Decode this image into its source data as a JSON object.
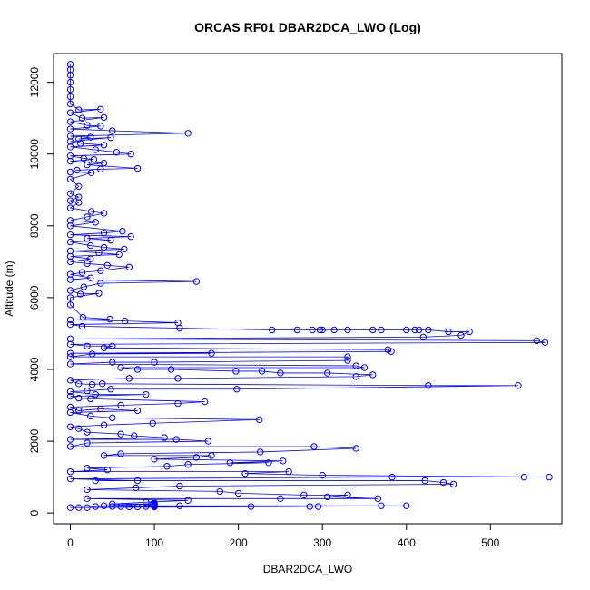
{
  "chart_data": {
    "type": "scatter",
    "title": "ORCAS RF01 DBAR2DCA_LWO (Log)",
    "xlabel": "DBAR2DCA_LWO",
    "ylabel": "Altitude (m)",
    "xlim": [
      -20,
      585
    ],
    "ylim": [
      -300,
      12800
    ],
    "xticks": [
      0,
      100,
      200,
      300,
      400,
      500
    ],
    "yticks": [
      0,
      2000,
      4000,
      6000,
      8000,
      10000,
      12000
    ],
    "grid": false,
    "legend": "none",
    "series": [
      {
        "color": "#0000ff",
        "marker": "open-circle",
        "line": true,
        "points": [
          [
            0,
            12500
          ],
          [
            0,
            12350
          ],
          [
            0,
            12200
          ],
          [
            0,
            12000
          ],
          [
            0,
            11800
          ],
          [
            0,
            11600
          ],
          [
            0,
            11400
          ],
          [
            10,
            11230
          ],
          [
            36,
            11250
          ],
          [
            0,
            11150
          ],
          [
            14,
            11000
          ],
          [
            40,
            11020
          ],
          [
            0,
            10900
          ],
          [
            20,
            10800
          ],
          [
            36,
            10780
          ],
          [
            0,
            10700
          ],
          [
            50,
            10650
          ],
          [
            140,
            10580
          ],
          [
            0,
            10500
          ],
          [
            24,
            10470
          ],
          [
            10,
            10420
          ],
          [
            48,
            10460
          ],
          [
            0,
            10350
          ],
          [
            12,
            10300
          ],
          [
            40,
            10250
          ],
          [
            0,
            10200
          ],
          [
            30,
            10120
          ],
          [
            55,
            10050
          ],
          [
            72,
            10000
          ],
          [
            0,
            9950
          ],
          [
            16,
            9880
          ],
          [
            28,
            9850
          ],
          [
            0,
            9800
          ],
          [
            40,
            9750
          ],
          [
            20,
            9700
          ],
          [
            80,
            9600
          ],
          [
            36,
            9580
          ],
          [
            8,
            9550
          ],
          [
            0,
            9500
          ],
          [
            25,
            9480
          ],
          [
            0,
            9300
          ],
          [
            10,
            9100
          ],
          [
            0,
            8900
          ],
          [
            10,
            8800
          ],
          [
            0,
            8700
          ],
          [
            10,
            8650
          ],
          [
            0,
            8500
          ],
          [
            25,
            8400
          ],
          [
            40,
            8350
          ],
          [
            20,
            8250
          ],
          [
            0,
            8150
          ],
          [
            30,
            8100
          ],
          [
            0,
            8000
          ],
          [
            62,
            7850
          ],
          [
            40,
            7800
          ],
          [
            0,
            7750
          ],
          [
            72,
            7700
          ],
          [
            20,
            7650
          ],
          [
            48,
            7600
          ],
          [
            0,
            7550
          ],
          [
            24,
            7450
          ],
          [
            40,
            7400
          ],
          [
            64,
            7350
          ],
          [
            0,
            7300
          ],
          [
            34,
            7250
          ],
          [
            58,
            7200
          ],
          [
            0,
            7150
          ],
          [
            24,
            7080
          ],
          [
            0,
            7000
          ],
          [
            20,
            6950
          ],
          [
            44,
            6900
          ],
          [
            70,
            6850
          ],
          [
            36,
            6750
          ],
          [
            14,
            6700
          ],
          [
            0,
            6650
          ],
          [
            24,
            6550
          ],
          [
            0,
            6500
          ],
          [
            150,
            6450
          ],
          [
            36,
            6400
          ],
          [
            16,
            6300
          ],
          [
            0,
            6200
          ],
          [
            12,
            6100
          ],
          [
            34,
            6120
          ],
          [
            0,
            6000
          ],
          [
            0,
            5800
          ],
          [
            15,
            5450
          ],
          [
            47,
            5400
          ],
          [
            0,
            5380
          ],
          [
            65,
            5350
          ],
          [
            128,
            5300
          ],
          [
            0,
            5250
          ],
          [
            14,
            5200
          ],
          [
            130,
            5150
          ],
          [
            240,
            5100
          ],
          [
            270,
            5100
          ],
          [
            288,
            5100
          ],
          [
            297,
            5100
          ],
          [
            300,
            5100
          ],
          [
            314,
            5100
          ],
          [
            330,
            5100
          ],
          [
            360,
            5100
          ],
          [
            370,
            5100
          ],
          [
            400,
            5100
          ],
          [
            410,
            5100
          ],
          [
            415,
            5100
          ],
          [
            426,
            5100
          ],
          [
            450,
            5050
          ],
          [
            475,
            5050
          ],
          [
            465,
            4950
          ],
          [
            420,
            4900
          ],
          [
            0,
            4850
          ],
          [
            555,
            4800
          ],
          [
            565,
            4750
          ],
          [
            0,
            4700
          ],
          [
            20,
            4650
          ],
          [
            50,
            4650
          ],
          [
            40,
            4600
          ],
          [
            378,
            4550
          ],
          [
            382,
            4500
          ],
          [
            0,
            4450
          ],
          [
            168,
            4450
          ],
          [
            26,
            4430
          ],
          [
            0,
            4350
          ],
          [
            330,
            4350
          ],
          [
            330,
            4250
          ],
          [
            100,
            4200
          ],
          [
            50,
            4200
          ],
          [
            0,
            4150
          ],
          [
            340,
            4100
          ],
          [
            350,
            4050
          ],
          [
            60,
            4050
          ],
          [
            80,
            4000
          ],
          [
            120,
            4000
          ],
          [
            197,
            3950
          ],
          [
            228,
            3950
          ],
          [
            250,
            3900
          ],
          [
            306,
            3900
          ],
          [
            360,
            3850
          ],
          [
            340,
            3800
          ],
          [
            128,
            3750
          ],
          [
            70,
            3750
          ],
          [
            0,
            3700
          ],
          [
            10,
            3600
          ],
          [
            26,
            3580
          ],
          [
            38,
            3600
          ],
          [
            426,
            3550
          ],
          [
            533,
            3550
          ],
          [
            198,
            3450
          ],
          [
            48,
            3450
          ],
          [
            20,
            3400
          ],
          [
            0,
            3380
          ],
          [
            30,
            3300
          ],
          [
            90,
            3300
          ],
          [
            0,
            3250
          ],
          [
            10,
            3200
          ],
          [
            24,
            3180
          ],
          [
            160,
            3100
          ],
          [
            128,
            3050
          ],
          [
            60,
            3000
          ],
          [
            0,
            2950
          ],
          [
            10,
            2850
          ],
          [
            36,
            2900
          ],
          [
            80,
            2850
          ],
          [
            0,
            2800
          ],
          [
            24,
            2700
          ],
          [
            50,
            2650
          ],
          [
            225,
            2600
          ],
          [
            98,
            2500
          ],
          [
            40,
            2450
          ],
          [
            0,
            2400
          ],
          [
            10,
            2350
          ],
          [
            20,
            2250
          ],
          [
            60,
            2200
          ],
          [
            76,
            2150
          ],
          [
            112,
            2100
          ],
          [
            0,
            2050
          ],
          [
            126,
            2050
          ],
          [
            164,
            2000
          ],
          [
            20,
            1950
          ],
          [
            0,
            1850
          ],
          [
            290,
            1850
          ],
          [
            340,
            1800
          ],
          [
            226,
            1700
          ],
          [
            60,
            1650
          ],
          [
            40,
            1600
          ],
          [
            168,
            1600
          ],
          [
            150,
            1550
          ],
          [
            100,
            1500
          ],
          [
            253,
            1450
          ],
          [
            190,
            1400
          ],
          [
            236,
            1400
          ],
          [
            140,
            1350
          ],
          [
            115,
            1300
          ],
          [
            20,
            1250
          ],
          [
            44,
            1200
          ],
          [
            0,
            1150
          ],
          [
            260,
            1150
          ],
          [
            208,
            1100
          ],
          [
            300,
            1050
          ],
          [
            570,
            1000
          ],
          [
            540,
            1000
          ],
          [
            383,
            1000
          ],
          [
            0,
            950
          ],
          [
            80,
            900
          ],
          [
            30,
            900
          ],
          [
            422,
            900
          ],
          [
            444,
            850
          ],
          [
            456,
            800
          ],
          [
            130,
            750
          ],
          [
            78,
            700
          ],
          [
            20,
            650
          ],
          [
            178,
            600
          ],
          [
            200,
            550
          ],
          [
            278,
            500
          ],
          [
            330,
            500
          ],
          [
            306,
            450
          ],
          [
            366,
            400
          ],
          [
            250,
            400
          ],
          [
            20,
            400
          ],
          [
            140,
            350
          ],
          [
            90,
            300
          ],
          [
            50,
            250
          ],
          [
            98,
            250
          ],
          [
            40,
            200
          ],
          [
            130,
            200
          ],
          [
            370,
            200
          ],
          [
            400,
            200
          ],
          [
            10,
            150
          ],
          [
            20,
            150
          ],
          [
            30,
            180
          ],
          [
            50,
            180
          ],
          [
            60,
            180
          ],
          [
            70,
            170
          ],
          [
            80,
            170
          ],
          [
            100,
            170
          ],
          [
            100,
            180
          ],
          [
            100,
            200
          ],
          [
            100,
            220
          ],
          [
            100,
            240
          ],
          [
            100,
            260
          ],
          [
            100,
            280
          ],
          [
            90,
            180
          ],
          [
            215,
            180
          ],
          [
            285,
            180
          ],
          [
            295,
            180
          ],
          [
            0,
            150
          ]
        ]
      }
    ]
  }
}
